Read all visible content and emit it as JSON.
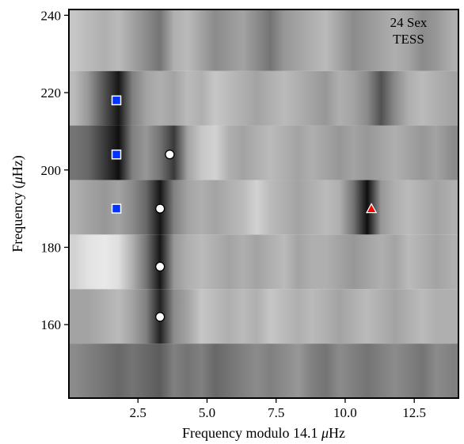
{
  "chart_data": {
    "type": "heatmap",
    "title": "",
    "xlabel_prefix": "Frequency modulo 14.1 ",
    "xlabel_symbol": "μ",
    "xlabel_suffix": "Hz",
    "ylabel_prefix": "Frequency (",
    "ylabel_symbol": "μ",
    "ylabel_suffix": "Hz)",
    "xlim": [
      0.0,
      14.1
    ],
    "ylim": [
      141.0,
      241.5
    ],
    "xticks": [
      2.5,
      5.0,
      7.5,
      10.0,
      12.5
    ],
    "xtick_labels": [
      "2.5",
      "5.0",
      "7.5",
      "10.0",
      "12.5"
    ],
    "yticks": [
      160,
      180,
      200,
      220,
      240
    ],
    "ytick_labels": [
      "160",
      "180",
      "200",
      "220",
      "240"
    ],
    "grid": false,
    "annotation_lines": [
      "24 Sex",
      "TESS"
    ],
    "colormap": "gray_r",
    "echelle_row_edges": [
      141.0,
      155.1,
      169.2,
      183.3,
      197.4,
      211.5,
      225.6,
      241.5
    ],
    "echelle_rows": [
      {
        "y_start": 141.0,
        "y_end": 155.1,
        "x": [
          0.2,
          0.7,
          1.3,
          1.8,
          2.3,
          2.8,
          3.3,
          3.8,
          4.3,
          4.8,
          5.3,
          5.8,
          6.3,
          6.8,
          7.3,
          7.8,
          8.3,
          8.8,
          9.3,
          9.8,
          10.3,
          10.8,
          11.3,
          11.8,
          12.3,
          12.8,
          13.3,
          13.9
        ],
        "power": [
          0.45,
          0.5,
          0.55,
          0.6,
          0.55,
          0.6,
          0.65,
          0.5,
          0.55,
          0.5,
          0.6,
          0.55,
          0.5,
          0.45,
          0.5,
          0.45,
          0.4,
          0.5,
          0.55,
          0.45,
          0.5,
          0.55,
          0.5,
          0.45,
          0.5,
          0.55,
          0.45,
          0.5
        ]
      },
      {
        "y_start": 155.1,
        "y_end": 169.2,
        "x": [
          0.2,
          0.7,
          1.3,
          1.8,
          2.3,
          2.8,
          3.3,
          3.8,
          4.3,
          4.8,
          5.3,
          5.8,
          6.3,
          6.8,
          7.3,
          7.8,
          8.3,
          8.8,
          9.3,
          9.8,
          10.3,
          10.8,
          11.3,
          11.8,
          12.3,
          12.8,
          13.3,
          13.9
        ],
        "power": [
          0.35,
          0.35,
          0.3,
          0.25,
          0.35,
          0.5,
          0.9,
          0.45,
          0.35,
          0.2,
          0.25,
          0.3,
          0.25,
          0.3,
          0.2,
          0.25,
          0.3,
          0.25,
          0.3,
          0.35,
          0.3,
          0.25,
          0.3,
          0.35,
          0.3,
          0.25,
          0.3,
          0.3
        ]
      },
      {
        "y_start": 169.2,
        "y_end": 183.3,
        "x": [
          0.2,
          0.7,
          1.3,
          1.8,
          2.3,
          2.8,
          3.3,
          3.8,
          4.3,
          4.8,
          5.3,
          5.8,
          6.3,
          6.8,
          7.3,
          7.8,
          8.3,
          8.8,
          9.3,
          9.8,
          10.3,
          10.8,
          11.3,
          11.8,
          12.3,
          12.8,
          13.3,
          13.9
        ],
        "power": [
          0.15,
          0.08,
          0.05,
          0.1,
          0.3,
          0.55,
          0.95,
          0.4,
          0.3,
          0.25,
          0.3,
          0.35,
          0.3,
          0.35,
          0.3,
          0.25,
          0.35,
          0.3,
          0.3,
          0.35,
          0.4,
          0.35,
          0.3,
          0.35,
          0.25,
          0.3,
          0.35,
          0.3
        ]
      },
      {
        "y_start": 183.3,
        "y_end": 197.4,
        "x": [
          0.2,
          0.7,
          1.3,
          1.8,
          2.3,
          2.8,
          3.3,
          3.8,
          4.3,
          4.8,
          5.3,
          5.8,
          6.3,
          6.8,
          7.3,
          7.8,
          8.3,
          8.8,
          9.3,
          9.8,
          10.3,
          10.8,
          11.3,
          11.8,
          12.3,
          12.8,
          13.3,
          13.9
        ],
        "power": [
          0.3,
          0.35,
          0.4,
          0.35,
          0.45,
          0.6,
          0.95,
          0.5,
          0.35,
          0.3,
          0.35,
          0.3,
          0.25,
          0.15,
          0.25,
          0.3,
          0.35,
          0.3,
          0.25,
          0.3,
          0.55,
          0.98,
          0.4,
          0.3,
          0.25,
          0.3,
          0.35,
          0.3
        ]
      },
      {
        "y_start": 197.4,
        "y_end": 211.5,
        "x": [
          0.2,
          0.7,
          1.3,
          1.8,
          2.3,
          2.8,
          3.3,
          3.8,
          4.3,
          4.8,
          5.3,
          5.8,
          6.3,
          6.8,
          7.3,
          7.8,
          8.3,
          8.8,
          9.3,
          9.8,
          10.3,
          10.8,
          11.3,
          11.8,
          12.3,
          12.8,
          13.3,
          13.9
        ],
        "power": [
          0.55,
          0.6,
          0.8,
          0.98,
          0.5,
          0.4,
          0.55,
          0.8,
          0.35,
          0.2,
          0.15,
          0.3,
          0.35,
          0.3,
          0.25,
          0.3,
          0.35,
          0.3,
          0.35,
          0.4,
          0.35,
          0.4,
          0.35,
          0.3,
          0.35,
          0.4,
          0.35,
          0.45
        ]
      },
      {
        "y_start": 211.5,
        "y_end": 225.6,
        "x": [
          0.2,
          0.7,
          1.3,
          1.8,
          2.3,
          2.8,
          3.3,
          3.8,
          4.3,
          4.8,
          5.3,
          5.8,
          6.3,
          6.8,
          7.3,
          7.8,
          8.3,
          8.8,
          9.3,
          9.8,
          10.3,
          10.8,
          11.3,
          11.8,
          12.3,
          12.8,
          13.3,
          13.9
        ],
        "power": [
          0.25,
          0.4,
          0.7,
          0.95,
          0.5,
          0.35,
          0.3,
          0.35,
          0.25,
          0.3,
          0.2,
          0.25,
          0.3,
          0.35,
          0.3,
          0.25,
          0.3,
          0.35,
          0.4,
          0.3,
          0.35,
          0.45,
          0.7,
          0.45,
          0.3,
          0.25,
          0.3,
          0.35
        ]
      },
      {
        "y_start": 225.6,
        "y_end": 241.5,
        "x": [
          0.2,
          0.7,
          1.3,
          1.8,
          2.3,
          2.8,
          3.3,
          3.8,
          4.3,
          4.8,
          5.3,
          5.8,
          6.3,
          6.8,
          7.3,
          7.8,
          8.3,
          8.8,
          9.3,
          9.8,
          10.3,
          10.8,
          11.3,
          11.8,
          12.3,
          12.8,
          13.3,
          13.9
        ],
        "power": [
          0.2,
          0.25,
          0.3,
          0.25,
          0.35,
          0.45,
          0.55,
          0.3,
          0.25,
          0.35,
          0.45,
          0.4,
          0.35,
          0.45,
          0.55,
          0.4,
          0.35,
          0.3,
          0.25,
          0.35,
          0.45,
          0.4,
          0.35,
          0.3,
          0.35,
          0.45,
          0.4,
          0.3
        ]
      }
    ],
    "series": [
      {
        "marker": "square",
        "color": "#0033ff",
        "points": [
          {
            "x": 1.72,
            "y": 218
          },
          {
            "x": 1.72,
            "y": 204
          },
          {
            "x": 1.72,
            "y": 190
          }
        ]
      },
      {
        "marker": "circle",
        "color": "#ffffff",
        "points": [
          {
            "x": 3.65,
            "y": 204
          },
          {
            "x": 3.3,
            "y": 190
          },
          {
            "x": 3.3,
            "y": 175
          },
          {
            "x": 3.3,
            "y": 162
          }
        ]
      },
      {
        "marker": "triangle",
        "color": "#ff0000",
        "points": [
          {
            "x": 10.95,
            "y": 190
          }
        ]
      }
    ]
  }
}
